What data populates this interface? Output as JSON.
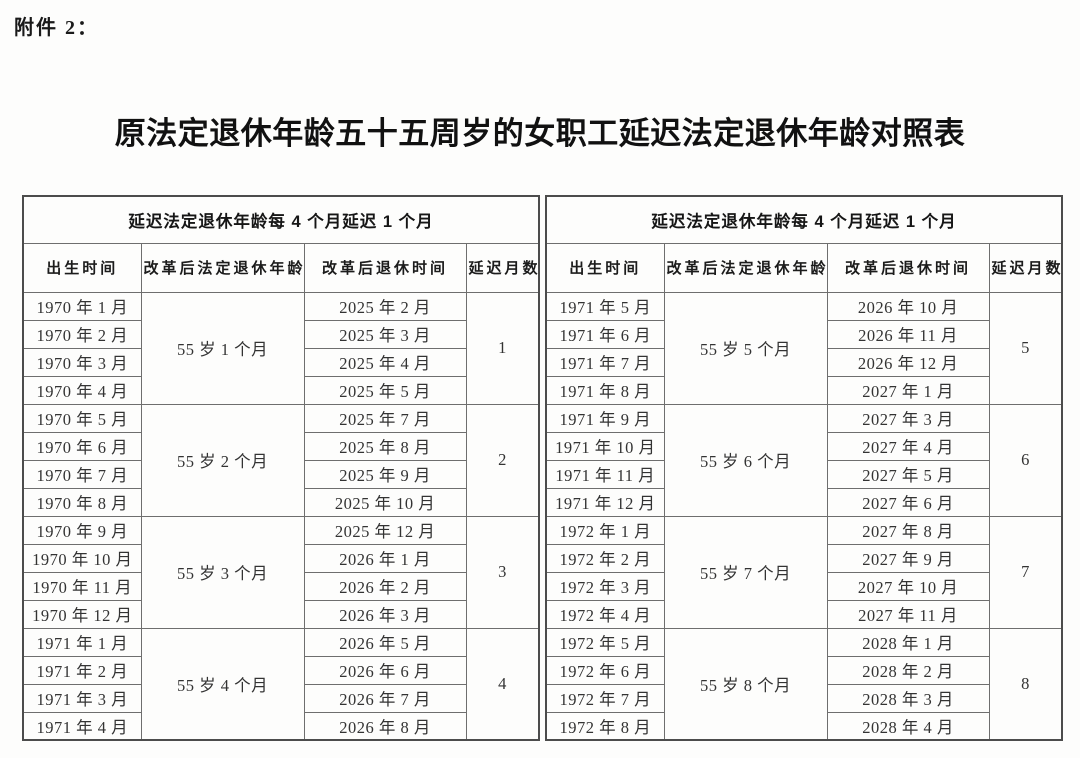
{
  "page": {
    "attachment_label": "附件 2：",
    "title": "原法定退休年龄五十五周岁的女职工延迟法定退休年龄对照表"
  },
  "table": {
    "group_header": "延迟法定退休年龄每 4 个月延迟 1 个月",
    "columns": [
      "出生时间",
      "改革后法定退休年龄",
      "改革后退休时间",
      "延迟月数"
    ],
    "halves": [
      {
        "groups": [
          {
            "birth_months": [
              "1970 年 1 月",
              "1970 年 2 月",
              "1970 年 3 月",
              "1970 年 4 月"
            ],
            "retirement_age": "55 岁 1 个月",
            "retirement_dates": [
              "2025 年 2 月",
              "2025 年 3 月",
              "2025 年 4 月",
              "2025 年 5 月"
            ],
            "delay_months": "1"
          },
          {
            "birth_months": [
              "1970 年 5 月",
              "1970 年 6 月",
              "1970 年 7 月",
              "1970 年 8 月"
            ],
            "retirement_age": "55 岁 2 个月",
            "retirement_dates": [
              "2025 年 7 月",
              "2025 年 8 月",
              "2025 年 9 月",
              "2025 年 10 月"
            ],
            "delay_months": "2"
          },
          {
            "birth_months": [
              "1970 年 9 月",
              "1970 年 10 月",
              "1970 年 11 月",
              "1970 年 12 月"
            ],
            "retirement_age": "55 岁 3 个月",
            "retirement_dates": [
              "2025 年 12 月",
              "2026 年 1 月",
              "2026 年 2 月",
              "2026 年 3 月"
            ],
            "delay_months": "3"
          },
          {
            "birth_months": [
              "1971 年 1 月",
              "1971 年 2 月",
              "1971 年 3 月",
              "1971 年 4 月"
            ],
            "retirement_age": "55 岁 4 个月",
            "retirement_dates": [
              "2026 年 5 月",
              "2026 年 6 月",
              "2026 年 7 月",
              "2026 年 8 月"
            ],
            "delay_months": "4"
          }
        ]
      },
      {
        "groups": [
          {
            "birth_months": [
              "1971 年 5 月",
              "1971 年 6 月",
              "1971 年 7 月",
              "1971 年 8 月"
            ],
            "retirement_age": "55 岁 5 个月",
            "retirement_dates": [
              "2026 年 10 月",
              "2026 年 11 月",
              "2026 年 12 月",
              "2027 年 1 月"
            ],
            "delay_months": "5"
          },
          {
            "birth_months": [
              "1971 年 9 月",
              "1971 年 10 月",
              "1971 年 11 月",
              "1971 年 12 月"
            ],
            "retirement_age": "55 岁 6 个月",
            "retirement_dates": [
              "2027 年 3 月",
              "2027 年 4 月",
              "2027 年 5 月",
              "2027 年 6 月"
            ],
            "delay_months": "6"
          },
          {
            "birth_months": [
              "1972 年 1 月",
              "1972 年 2 月",
              "1972 年 3 月",
              "1972 年 4 月"
            ],
            "retirement_age": "55 岁 7 个月",
            "retirement_dates": [
              "2027 年 8 月",
              "2027 年 9 月",
              "2027 年 10 月",
              "2027 年 11 月"
            ],
            "delay_months": "7"
          },
          {
            "birth_months": [
              "1972 年 5 月",
              "1972 年 6 月",
              "1972 年 7 月",
              "1972 年 8 月"
            ],
            "retirement_age": "55 岁 8 个月",
            "retirement_dates": [
              "2028 年 1 月",
              "2028 年 2 月",
              "2028 年 3 月",
              "2028 年 4 月"
            ],
            "delay_months": "8"
          }
        ]
      }
    ]
  }
}
